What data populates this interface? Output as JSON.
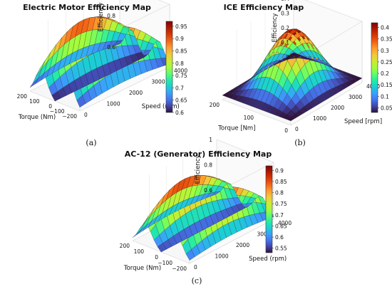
{
  "chart_data": [
    {
      "type": "surface",
      "panel": "a",
      "title": "Electric Motor Efficiency Map",
      "caption": "(a)",
      "xlabel": "Torque (Nm)",
      "ylabel": "Speed (rpm)",
      "zlabel": "Efficiency",
      "xticks": [
        "200",
        "100",
        "0",
        "−100",
        "−200"
      ],
      "yticks": [
        "0",
        "1000",
        "2000",
        "3000",
        "4000"
      ],
      "zticks": [
        "0.6",
        "0.8",
        "1"
      ],
      "colorbar_ticks": [
        "0.95",
        "0.9",
        "0.85",
        "0.8",
        "0.75",
        "0.7",
        "0.65",
        "0.6"
      ],
      "x_range": [
        -200,
        200
      ],
      "y_range": [
        0,
        4000
      ],
      "z_range": [
        0.6,
        1.0
      ],
      "clim": [
        0.6,
        0.97
      ],
      "colormap": "turbo",
      "shape": "twin-ridge",
      "peak": 0.96
    },
    {
      "type": "surface",
      "panel": "b",
      "title": "ICE Efficiency Map",
      "caption": "(b)",
      "xlabel": "Torque [Nm]",
      "ylabel": "Speed [rpm]",
      "zlabel": "Efficiency",
      "xticks": [
        "200",
        "100",
        "0"
      ],
      "yticks": [
        "0",
        "1000",
        "2000",
        "3000",
        "4000"
      ],
      "zticks": [
        "0",
        "0.1",
        "0.2",
        "0.3",
        "0.4"
      ],
      "colorbar_ticks": [
        "0.4",
        "0.35",
        "0.3",
        "0.25",
        "0.2",
        "0.15",
        "0.1",
        "0.05"
      ],
      "x_range": [
        0,
        200
      ],
      "y_range": [
        0,
        4000
      ],
      "z_range": [
        0,
        0.42
      ],
      "clim": [
        0.03,
        0.42
      ],
      "colormap": "turbo",
      "shape": "dome",
      "peak": 0.42
    },
    {
      "type": "surface",
      "panel": "c",
      "title": "AC-12 (Generator) Efficiency Map",
      "caption": "(c)",
      "xlabel": "Torque (Nm)",
      "ylabel": "Speed (rpm)",
      "zlabel": "Efficiency",
      "xticks": [
        "200",
        "100",
        "0",
        "−100",
        "−200"
      ],
      "yticks": [
        "0",
        "1000",
        "2000",
        "3000",
        "4000"
      ],
      "zticks": [
        "0.6",
        "0.8",
        "1"
      ],
      "colorbar_ticks": [
        "0.9",
        "0.85",
        "0.8",
        "0.75",
        "0.7",
        "0.65",
        "0.6",
        "0.55"
      ],
      "x_range": [
        -200,
        200
      ],
      "y_range": [
        0,
        4000
      ],
      "z_range": [
        0.55,
        1.0
      ],
      "clim": [
        0.53,
        0.92
      ],
      "colormap": "turbo",
      "shape": "twin-ridge",
      "peak": 0.92
    }
  ]
}
